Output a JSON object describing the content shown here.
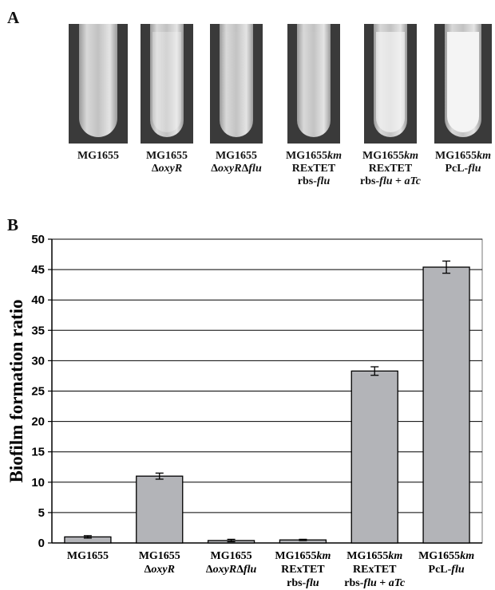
{
  "panel_a": {
    "letter": "A",
    "tubes": [
      {
        "lines": [
          "MG1655"
        ],
        "biofilm": 0.0
      },
      {
        "lines": [
          "MG1655",
          "ΔoxyR"
        ],
        "biofilm": 0.35
      },
      {
        "lines": [
          "MG1655",
          "ΔoxyRΔflu"
        ],
        "biofilm": 0.05
      },
      {
        "lines": [
          "MG1655km",
          "RExTET",
          "rbs-flu"
        ],
        "biofilm": 0.05
      },
      {
        "lines": [
          "MG1655km",
          "RExTET",
          "rbs-flu + aTc"
        ],
        "biofilm": 0.7
      },
      {
        "lines": [
          "MG1655km",
          "PcL-flu"
        ],
        "biofilm": 1.0
      }
    ]
  },
  "chart_data": {
    "panel_letter": "B",
    "type": "bar",
    "categories": [
      [
        "MG1655"
      ],
      [
        "MG1655",
        "ΔoxyR"
      ],
      [
        "MG1655",
        "ΔoxyRΔflu"
      ],
      [
        "MG1655km",
        "RExTET",
        "rbs-flu"
      ],
      [
        "MG1655km",
        "RExTET",
        "rbs-flu + aTc"
      ],
      [
        "MG1655km",
        "PcL-flu"
      ]
    ],
    "values": [
      1.0,
      11.0,
      0.4,
      0.5,
      28.3,
      45.4
    ],
    "errors": [
      0.2,
      0.5,
      0.2,
      0.1,
      0.7,
      1.0
    ],
    "title": "",
    "xlabel": "",
    "ylabel": "Biofilm formation ratio",
    "ylim": [
      0,
      50
    ],
    "yticks": [
      0,
      5,
      10,
      15,
      20,
      25,
      30,
      35,
      40,
      45,
      50
    ],
    "grid": true,
    "bar_color": "#b3b4b8"
  }
}
